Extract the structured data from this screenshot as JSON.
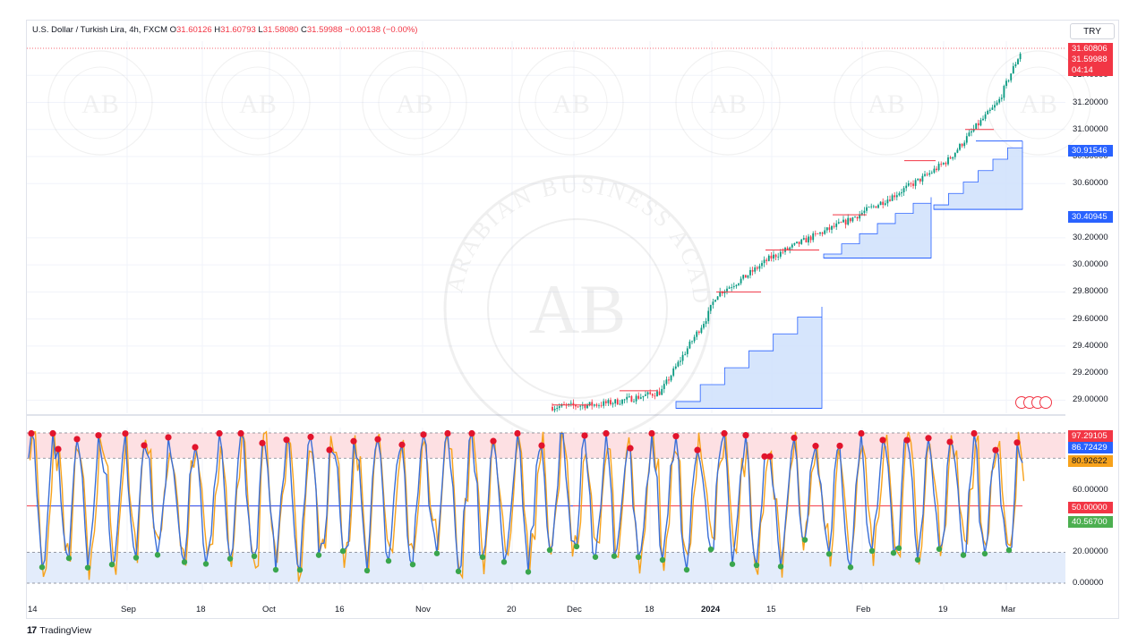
{
  "header": {
    "symbol": "U.S. Dollar / Turkish Lira, 4h, FXCM",
    "o_key": "O",
    "o_val": "31.60126",
    "h_key": "H",
    "h_val": "31.60793",
    "l_key": "L",
    "l_val": "31.58080",
    "c_key": "C",
    "c_val": "31.59988",
    "change": "−0.00138 (−0.00%)"
  },
  "currency_button": "TRY",
  "price_tags": {
    "high": "31.60806",
    "last": "31.59988",
    "countdown": "04:14",
    "pivot_high": "30.91546",
    "pivot_low": "30.40945"
  },
  "osc_tags": {
    "top": "97.29105",
    "blue": "86.72429",
    "orange": "80.92622",
    "mid": "50.00000",
    "green": "40.56700"
  },
  "brand": "TradingView",
  "watermark": {
    "letters": "AB",
    "arc_text": "ARABIAN BUSINESS ACADEMY"
  },
  "colors": {
    "up": "#089981",
    "down": "#f23645",
    "zone": "#cfe0fb",
    "zone_line": "#2962ff",
    "osc_blue": "#3a6fd8",
    "osc_orange": "#f7a21b",
    "ob_fill": "#fde0e3",
    "os_fill": "#e3ecfb",
    "marker_red": "#e2142c",
    "marker_green": "#3aa64d"
  },
  "chart_data": [
    {
      "type": "candlestick",
      "title": "U.S. Dollar / Turkish Lira, 4h, FXCM",
      "timeframe": "4h",
      "y_ticks": [
        "31.40000",
        "31.20000",
        "31.00000",
        "30.80000",
        "30.60000",
        "30.20000",
        "30.00000",
        "29.80000",
        "29.60000",
        "29.40000",
        "29.20000",
        "29.00000"
      ],
      "ylim": [
        28.93,
        31.72
      ],
      "x_ticks": [
        "14",
        "Sep",
        "18",
        "Oct",
        "16",
        "Nov",
        "20",
        "Dec",
        "18",
        "2024",
        "15",
        "Feb",
        "19",
        "Mar"
      ],
      "close_path": [
        {
          "t": "Nov 26",
          "v": 28.95
        },
        {
          "t": "Dec 8",
          "v": 28.97
        },
        {
          "t": "Dec 12",
          "v": 28.99
        },
        {
          "t": "Dec 20",
          "v": 29.06
        },
        {
          "t": "Dec 22",
          "v": 29.3
        },
        {
          "t": "Dec 26",
          "v": 29.62
        },
        {
          "t": "Dec 29",
          "v": 29.78
        },
        {
          "t": "Jan 5",
          "v": 29.9
        },
        {
          "t": "Jan 10",
          "v": 30.05
        },
        {
          "t": "Jan 17",
          "v": 30.2
        },
        {
          "t": "Jan 25",
          "v": 30.32
        },
        {
          "t": "Feb 2",
          "v": 30.5
        },
        {
          "t": "Feb 10",
          "v": 30.66
        },
        {
          "t": "Feb 20",
          "v": 30.78
        },
        {
          "t": "Feb 27",
          "v": 31.02
        },
        {
          "t": "Mar 2",
          "v": 31.2
        },
        {
          "t": "Mar 4",
          "v": 31.4
        },
        {
          "t": "Mar 5",
          "v": 31.59988
        }
      ],
      "last": {
        "open": 31.60126,
        "high": 31.60793,
        "low": 31.5808,
        "close": 31.59988,
        "change": -0.00138
      }
    },
    {
      "type": "line",
      "title": "",
      "y_ticks": [
        "60.00000",
        "20.00000",
        "0.00000"
      ],
      "ylim": [
        -2,
        102
      ],
      "levels": {
        "overbought": 97.29105,
        "upper": 80.92622,
        "mid": 50.0,
        "lower": 20.0,
        "bottom": 0.0
      },
      "series": [
        {
          "key": "blue",
          "last": 86.72429
        },
        {
          "key": "orange",
          "last": 80.92622
        },
        {
          "key": "green",
          "last": 40.567
        }
      ]
    }
  ]
}
